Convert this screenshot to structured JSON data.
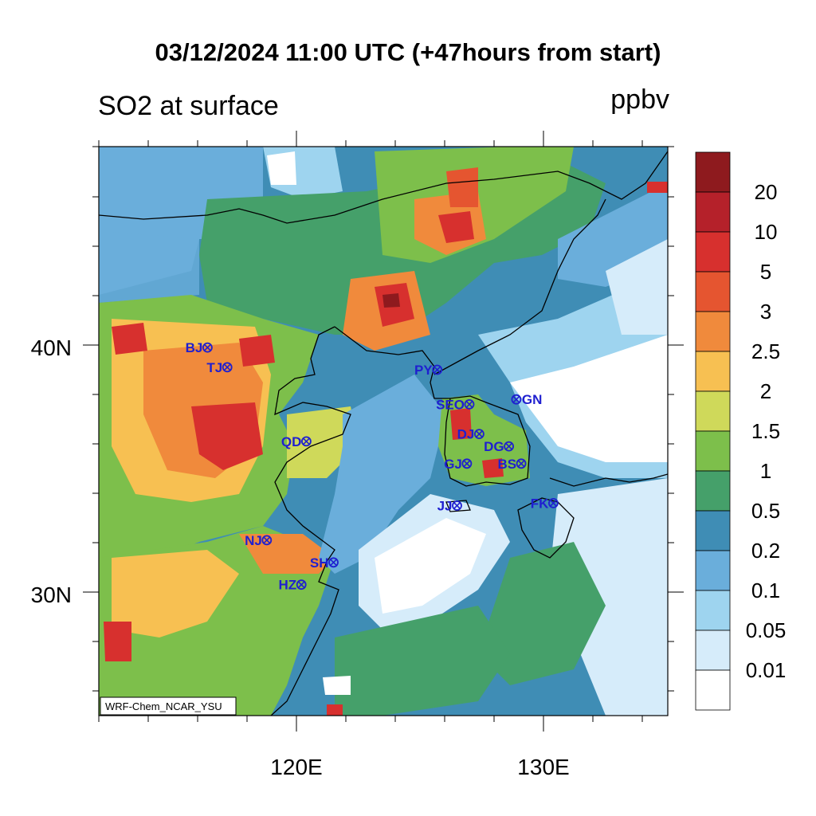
{
  "title": "03/12/2024 11:00 UTC (+47hours from start)",
  "subtitle": "SO2 at surface",
  "units": "ppbv",
  "model_label": "WRF-Chem_NCAR_YSU",
  "axes": {
    "lat_ticks": [
      {
        "label": "40N",
        "value": 40
      },
      {
        "label": "30N",
        "value": 30
      }
    ],
    "lon_ticks": [
      {
        "label": "120E",
        "value": 120
      },
      {
        "label": "130E",
        "value": 130
      }
    ],
    "lon_range": [
      112,
      135
    ],
    "lat_range": [
      25,
      48
    ]
  },
  "legend": {
    "levels": [
      "20",
      "10",
      "5",
      "3",
      "2.5",
      "2",
      "1.5",
      "1",
      "0.5",
      "0.2",
      "0.1",
      "0.05",
      "0.01"
    ],
    "colors": [
      "#8e1a1e",
      "#b5212a",
      "#d7302e",
      "#e55530",
      "#f08a3c",
      "#f7c052",
      "#cfd95a",
      "#7dbf4b",
      "#45a06a",
      "#3f8db5",
      "#6aaedb",
      "#9ed4ef",
      "#d6ecfa",
      "#ffffff"
    ]
  },
  "stations": [
    {
      "code": "BJ",
      "lon": 116.4,
      "lat": 39.9
    },
    {
      "code": "TJ",
      "lon": 117.2,
      "lat": 39.1
    },
    {
      "code": "QD",
      "lon": 120.4,
      "lat": 36.1
    },
    {
      "code": "NJ",
      "lon": 118.8,
      "lat": 32.1
    },
    {
      "code": "SH",
      "lon": 121.5,
      "lat": 31.2
    },
    {
      "code": "HZ",
      "lon": 120.2,
      "lat": 30.3
    },
    {
      "code": "PY",
      "lon": 125.7,
      "lat": 39.0
    },
    {
      "code": "SEO",
      "lon": 127.0,
      "lat": 37.6
    },
    {
      "code": "GN",
      "lon": 128.9,
      "lat": 37.8
    },
    {
      "code": "DJ",
      "lon": 127.4,
      "lat": 36.4
    },
    {
      "code": "DG",
      "lon": 128.6,
      "lat": 35.9
    },
    {
      "code": "BS",
      "lon": 129.1,
      "lat": 35.2
    },
    {
      "code": "GJ",
      "lon": 126.9,
      "lat": 35.2
    },
    {
      "code": "JJ",
      "lon": 126.5,
      "lat": 33.5
    },
    {
      "code": "FK",
      "lon": 130.4,
      "lat": 33.6
    }
  ]
}
